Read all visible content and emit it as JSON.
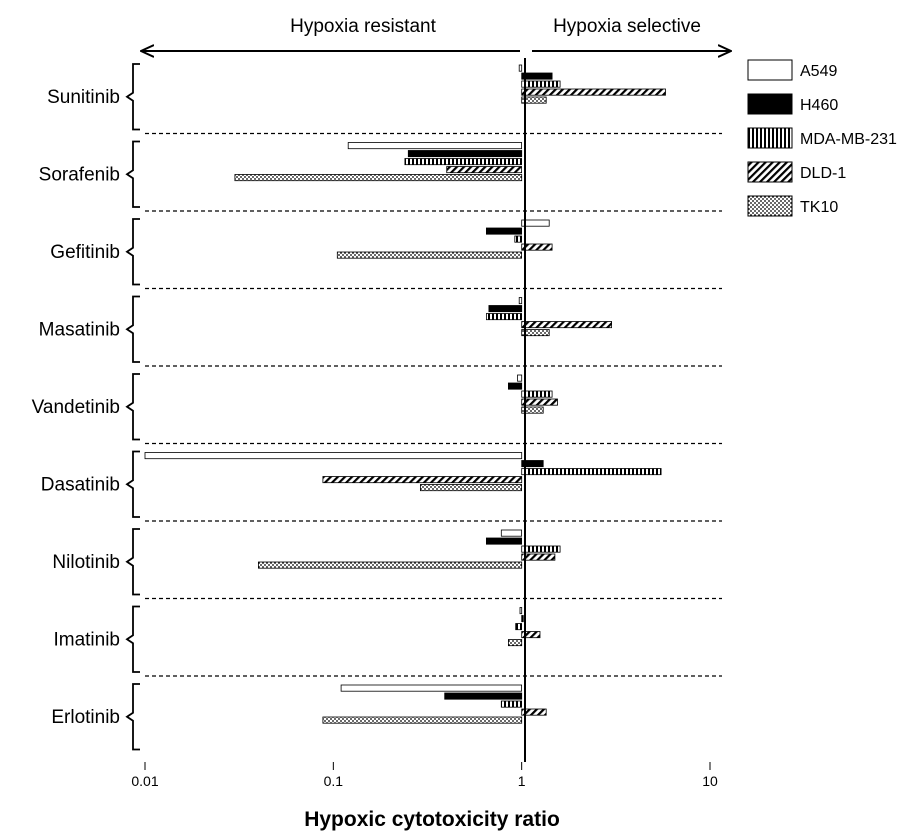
{
  "chart_data": {
    "type": "bar",
    "orientation": "horizontal",
    "xscale": "log",
    "xlim": [
      0.01,
      10
    ],
    "baseline": 1,
    "xlabel": "Hypoxic cytotoxicity ratio",
    "xticks": [
      "0.01",
      "0.1",
      "1",
      "10"
    ],
    "xtick_values": [
      0.01,
      0.1,
      1,
      10
    ],
    "region_labels": {
      "left": "Hypoxia resistant",
      "right": "Hypoxia selective"
    },
    "legend_position": "right",
    "categories": [
      "Sunitinib",
      "Sorafenib",
      "Gefitinib",
      "Masatinib",
      "Vandetinib",
      "Dasatinib",
      "Nilotinib",
      "Imatinib",
      "Erlotinib"
    ],
    "series": [
      {
        "name": "A549",
        "pattern": "open",
        "color": "#ffffff",
        "values": [
          0.97,
          0.12,
          1.4,
          0.97,
          0.95,
          0.01,
          0.78,
          0.98,
          0.11
        ]
      },
      {
        "name": "H460",
        "pattern": "solid",
        "color": "#000000",
        "values": [
          1.45,
          0.25,
          0.65,
          0.67,
          0.85,
          1.3,
          0.65,
          1.02,
          0.39
        ]
      },
      {
        "name": "MDA-MB-231",
        "pattern": "vertical-stripes",
        "color": "#000000",
        "values": [
          1.6,
          0.24,
          0.92,
          0.65,
          1.45,
          5.5,
          1.6,
          0.93,
          0.78
        ]
      },
      {
        "name": "DLD-1",
        "pattern": "diagonal-stripes",
        "color": "#000000",
        "values": [
          5.8,
          0.4,
          1.45,
          3.0,
          1.55,
          0.088,
          1.5,
          1.25,
          1.35
        ]
      },
      {
        "name": "TK10",
        "pattern": "dots",
        "color": "#000000",
        "values": [
          1.35,
          0.03,
          0.105,
          1.4,
          1.3,
          0.29,
          0.04,
          0.85,
          0.088
        ]
      }
    ]
  }
}
